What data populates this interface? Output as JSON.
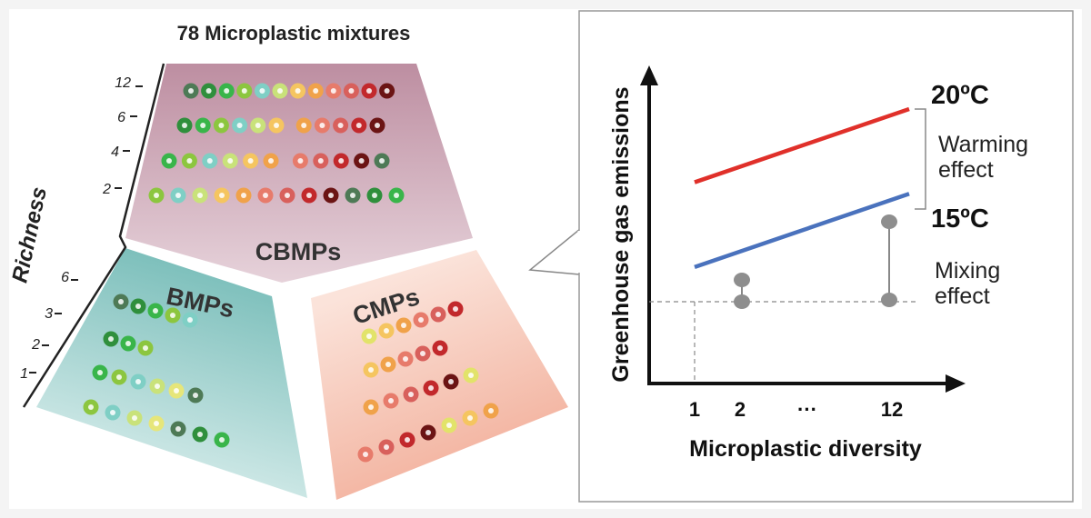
{
  "figure": {
    "title": "78 Microplastic mixtures",
    "richness_axis_label": "Richness",
    "upper_ticks": [
      "12",
      "6",
      "4",
      "2"
    ],
    "lower_ticks": [
      "6",
      "3",
      "2",
      "1"
    ],
    "groups": {
      "cbmps": {
        "label": "CBMPs",
        "rows": [
          12,
          11,
          11,
          12
        ],
        "color": "#cda7b5"
      },
      "bmps": {
        "label": "BMPs",
        "rows": [
          5,
          3,
          6,
          7
        ],
        "color": "#8fcac6"
      },
      "cmps": {
        "label": "CMPs",
        "rows": [
          6,
          5,
          6,
          7
        ],
        "color": "#f0a893"
      }
    }
  },
  "chart": {
    "ylabel": "Greenhouse gas emissions",
    "xlabel": "Microplastic diversity",
    "x_ticks": [
      "1",
      "2",
      "···",
      "12"
    ],
    "series_20_label": "20ºC",
    "series_15_label": "15ºC",
    "warming_line1": "Warming",
    "warming_line2": "effect",
    "mixing_line1": "Mixing",
    "mixing_line2": "effect"
  },
  "chart_data": {
    "type": "line",
    "title": "",
    "xlabel": "Microplastic diversity",
    "ylabel": "Greenhouse gas emissions",
    "categories": [
      "1",
      "2",
      "···",
      "12"
    ],
    "series": [
      {
        "name": "20ºC",
        "color": "#e0302a",
        "x": [
          1,
          12
        ],
        "y": [
          0.62,
          1.0
        ]
      },
      {
        "name": "15ºC",
        "color": "#4a72bd",
        "x": [
          1,
          12
        ],
        "y": [
          0.18,
          0.56
        ]
      }
    ],
    "annotations": [
      "Warming effect",
      "Mixing effect"
    ]
  }
}
